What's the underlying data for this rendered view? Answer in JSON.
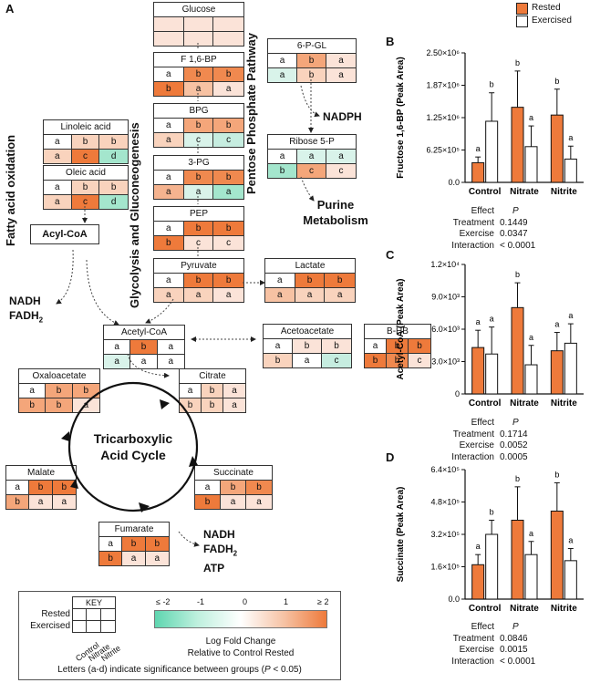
{
  "panels": {
    "a": "A",
    "b": "B",
    "c": "C",
    "d": "D"
  },
  "colors": {
    "accent": "#EE7A3B",
    "low": "#5FD6B0"
  },
  "boxes": [
    {
      "id": "glucose",
      "title": "Glucose",
      "rows": [
        [
          "",
          "",
          ""
        ],
        [
          "",
          "",
          ""
        ]
      ],
      "fills": [
        [
          "#fbe3d8",
          "#fbe3d8",
          "#fbe3d8"
        ],
        [
          "#fbe3d8",
          "#fbe3d8",
          "#fbe3d8"
        ]
      ]
    },
    {
      "id": "f16bp",
      "title": "F 1,6-BP",
      "rows": [
        [
          "a",
          "b",
          "b"
        ],
        [
          "b",
          "a",
          "a"
        ]
      ],
      "fills": [
        [
          "#ffffff",
          "#f0894f",
          "#f0894f"
        ],
        [
          "#ee7a3b",
          "#f7c2a3",
          "#fbe3d8"
        ]
      ]
    },
    {
      "id": "bpg",
      "title": "BPG",
      "rows": [
        [
          "a",
          "b",
          "b"
        ],
        [
          "a",
          "c",
          "c"
        ]
      ],
      "fills": [
        [
          "#ffffff",
          "#f4a67a",
          "#f4a67a"
        ],
        [
          "#f9d3bd",
          "#d9f3ea",
          "#c6ede0"
        ]
      ]
    },
    {
      "id": "pg3",
      "title": "3-PG",
      "rows": [
        [
          "a",
          "b",
          "b"
        ],
        [
          "a",
          "a",
          "a"
        ]
      ],
      "fills": [
        [
          "#ffffff",
          "#f0894f",
          "#f0894f"
        ],
        [
          "#f5b38f",
          "#d9f3ea",
          "#a4e6cd"
        ]
      ]
    },
    {
      "id": "pep",
      "title": "PEP",
      "rows": [
        [
          "a",
          "b",
          "b"
        ],
        [
          "b",
          "c",
          "c"
        ]
      ],
      "fills": [
        [
          "#ffffff",
          "#ee7a3b",
          "#ee7a3b"
        ],
        [
          "#ee7a3b",
          "#fbe3d8",
          "#fbe3d8"
        ]
      ]
    },
    {
      "id": "pyruvate",
      "title": "Pyruvate",
      "rows": [
        [
          "a",
          "b",
          "b"
        ],
        [
          "a",
          "a",
          "a"
        ]
      ],
      "fills": [
        [
          "#ffffff",
          "#ee7a3b",
          "#ee7a3b"
        ],
        [
          "#f9d3bd",
          "#f9d3bd",
          "#fbe3d8"
        ]
      ]
    },
    {
      "id": "lactate",
      "title": "Lactate",
      "rows": [
        [
          "a",
          "b",
          "b"
        ],
        [
          "a",
          "a",
          "a"
        ]
      ],
      "fills": [
        [
          "#ffffff",
          "#ee7a3b",
          "#ee7a3b"
        ],
        [
          "#f7c2a3",
          "#f9d3bd",
          "#f9d3bd"
        ]
      ]
    },
    {
      "id": "pgl6",
      "title": "6-P-GL",
      "rows": [
        [
          "a",
          "b",
          "a"
        ],
        [
          "a",
          "b",
          "a"
        ]
      ],
      "fills": [
        [
          "#ffffff",
          "#f4a67a",
          "#fbe3d8"
        ],
        [
          "#d9f3ea",
          "#f9d3bd",
          "#fbe3d8"
        ]
      ]
    },
    {
      "id": "ribose",
      "title": "Ribose 5-P",
      "rows": [
        [
          "a",
          "a",
          "a"
        ],
        [
          "b",
          "c",
          "c"
        ]
      ],
      "fills": [
        [
          "#ffffff",
          "#d9f3ea",
          "#d9f3ea"
        ],
        [
          "#a4e6cd",
          "#f4a67a",
          "#fbe3d8"
        ]
      ]
    },
    {
      "id": "linoleic",
      "title": "Linoleic acid",
      "rows": [
        [
          "a",
          "b",
          "b"
        ],
        [
          "a",
          "c",
          "d"
        ]
      ],
      "fills": [
        [
          "#ffffff",
          "#f9d3bd",
          "#f9d3bd"
        ],
        [
          "#f9d3bd",
          "#ee7a3b",
          "#a4e6cd"
        ]
      ]
    },
    {
      "id": "oleic",
      "title": "Oleic acid",
      "rows": [
        [
          "a",
          "b",
          "b"
        ],
        [
          "a",
          "c",
          "d"
        ]
      ],
      "fills": [
        [
          "#ffffff",
          "#f9d3bd",
          "#f9d3bd"
        ],
        [
          "#f9d3bd",
          "#ee7a3b",
          "#a4e6cd"
        ]
      ]
    },
    {
      "id": "acetylcoa",
      "title": "Acetyl-CoA",
      "rows": [
        [
          "a",
          "b",
          "a"
        ],
        [
          "a",
          "a",
          "a"
        ]
      ],
      "fills": [
        [
          "#ffffff",
          "#ee7a3b",
          "#ffffff"
        ],
        [
          "#d9f3ea",
          "#ffffff",
          "#ffffff"
        ]
      ]
    },
    {
      "id": "acetoacetate",
      "title": "Acetoacetate",
      "rows": [
        [
          "a",
          "b",
          "b"
        ],
        [
          "b",
          "a",
          "c"
        ]
      ],
      "fills": [
        [
          "#ffffff",
          "#fbe3d8",
          "#fbe3d8"
        ],
        [
          "#f9d3bd",
          "#ffffff",
          "#c6ede0"
        ]
      ]
    },
    {
      "id": "bhb",
      "title": "B-HB",
      "rows": [
        [
          "a",
          "b",
          "b"
        ],
        [
          "b",
          "b",
          "c"
        ]
      ],
      "fills": [
        [
          "#ffffff",
          "#ee7a3b",
          "#ee7a3b"
        ],
        [
          "#ee7a3b",
          "#f0894f",
          "#fbe3d8"
        ]
      ]
    },
    {
      "id": "oxaloacetate",
      "title": "Oxaloacetate",
      "rows": [
        [
          "a",
          "b",
          "b"
        ],
        [
          "b",
          "b",
          "a"
        ]
      ],
      "fills": [
        [
          "#ffffff",
          "#f4a67a",
          "#f4a67a"
        ],
        [
          "#f4a67a",
          "#f4a67a",
          "#fbe3d8"
        ]
      ]
    },
    {
      "id": "citrate",
      "title": "Citrate",
      "rows": [
        [
          "a",
          "b",
          "a"
        ],
        [
          "b",
          "b",
          "a"
        ]
      ],
      "fills": [
        [
          "#ffffff",
          "#f9d3bd",
          "#fbe3d8"
        ],
        [
          "#f9d3bd",
          "#f9d3bd",
          "#fbe3d8"
        ]
      ]
    },
    {
      "id": "malate",
      "title": "Malate",
      "rows": [
        [
          "a",
          "b",
          "b"
        ],
        [
          "b",
          "a",
          "a"
        ]
      ],
      "fills": [
        [
          "#ffffff",
          "#ee7a3b",
          "#ee7a3b"
        ],
        [
          "#f4a67a",
          "#fbe3d8",
          "#fbe3d8"
        ]
      ]
    },
    {
      "id": "succinate",
      "title": "Succinate",
      "rows": [
        [
          "a",
          "b",
          "b"
        ],
        [
          "b",
          "a",
          "a"
        ]
      ],
      "fills": [
        [
          "#ffffff",
          "#f4a67a",
          "#f0894f"
        ],
        [
          "#ee7a3b",
          "#fbe3d8",
          "#fbe3d8"
        ]
      ]
    },
    {
      "id": "fumarate",
      "title": "Fumarate",
      "rows": [
        [
          "a",
          "b",
          "b"
        ],
        [
          "b",
          "a",
          "a"
        ]
      ],
      "fills": [
        [
          "#ffffff",
          "#ee7a3b",
          "#ee7a3b"
        ],
        [
          "#ee7a3b",
          "#fbe3d8",
          "#fbe3d8"
        ]
      ]
    }
  ],
  "labels": {
    "fatty_acid": "Fatty acid oxidation",
    "glycolysis": "Glycolysis and Gluconeogenesis",
    "ppp": "Pentose Phosphate Pathway",
    "nadph": "NADPH",
    "purine": "Purine Metabolism",
    "acyl_coa": "Acyl-CoA",
    "nadh1": "NADH",
    "fadh1": "FADH",
    "tca": "Tricarboxylic Acid Cycle",
    "nadh2": "NADH",
    "fadh2": "FADH",
    "atp": "ATP",
    "sub2": "2"
  },
  "key": {
    "title": "KEY",
    "rows": [
      "Rested",
      "Exercised"
    ],
    "cols": [
      "Control",
      "Nitrate",
      "Nitrite"
    ],
    "scale_ticks": [
      "≤ -2",
      "-1",
      "0",
      "1",
      "≥ 2"
    ],
    "caption1": "Log Fold Change",
    "caption2": "Relative to Control Rested",
    "footnote_pre": "Letters (a-d) indicate significance between groups (",
    "footnote_p": "P",
    "footnote_post": " < 0.05)"
  },
  "legend": {
    "rested": "Rested",
    "exercised": "Exercised"
  },
  "chart_data": [
    {
      "panel": "B",
      "type": "bar",
      "ylabel": "Fructose 1,6-BP (Peak Area)",
      "ylim": [
        0,
        2500000
      ],
      "yticks": [
        "0.0",
        "6.25×10⁵",
        "1.25×10⁶",
        "1.87×10⁶",
        "2.50×10⁶"
      ],
      "categories": [
        "Control",
        "Nitrate",
        "Nitrite"
      ],
      "series": [
        {
          "name": "Rested",
          "values": [
            380000,
            1450000,
            1300000
          ],
          "err": [
            110000,
            700000,
            500000
          ],
          "letters": [
            "a",
            "b",
            "b"
          ]
        },
        {
          "name": "Exercised",
          "values": [
            1180000,
            690000,
            450000
          ],
          "err": [
            550000,
            400000,
            250000
          ],
          "letters": [
            "b",
            "a",
            "a"
          ]
        }
      ],
      "stats": {
        "header": [
          "Effect",
          "P"
        ],
        "rows": [
          [
            "Treatment",
            "0.1449"
          ],
          [
            "Exercise",
            "0.0347"
          ],
          [
            "Interaction",
            "< 0.0001"
          ]
        ]
      }
    },
    {
      "panel": "C",
      "type": "bar",
      "ylabel": "Acetyl-CoA (Peak Area)",
      "ylim": [
        0,
        12000
      ],
      "yticks": [
        "0",
        "3.0×10³",
        "6.0×10³",
        "9.0×10³",
        "1.2×10⁴"
      ],
      "categories": [
        "Control",
        "Nitrate",
        "Nitrite"
      ],
      "series": [
        {
          "name": "Rested",
          "values": [
            4300,
            8000,
            4000
          ],
          "err": [
            1600,
            2300,
            1700
          ],
          "letters": [
            "a",
            "b",
            "a"
          ]
        },
        {
          "name": "Exercised",
          "values": [
            3700,
            2700,
            4700
          ],
          "err": [
            2500,
            1800,
            1800
          ],
          "letters": [
            "a",
            "a",
            "a"
          ]
        }
      ],
      "stats": {
        "header": [
          "Effect",
          "P"
        ],
        "rows": [
          [
            "Treatment",
            "0.1714"
          ],
          [
            "Exercise",
            "0.0052"
          ],
          [
            "Interaction",
            "0.0005"
          ]
        ]
      }
    },
    {
      "panel": "D",
      "type": "bar",
      "ylabel": "Succinate (Peak Area)",
      "ylim": [
        0,
        640000
      ],
      "yticks": [
        "0.0",
        "1.6×10⁵",
        "3.2×10⁵",
        "4.8×10⁵",
        "6.4×10⁵"
      ],
      "categories": [
        "Control",
        "Nitrate",
        "Nitrite"
      ],
      "series": [
        {
          "name": "Rested",
          "values": [
            170000,
            390000,
            435000
          ],
          "err": [
            50000,
            165000,
            140000
          ],
          "letters": [
            "a",
            "b",
            "b"
          ]
        },
        {
          "name": "Exercised",
          "values": [
            320000,
            220000,
            190000
          ],
          "err": [
            70000,
            65000,
            60000
          ],
          "letters": [
            "b",
            "a",
            "a"
          ]
        }
      ],
      "stats": {
        "header": [
          "Effect",
          "P"
        ],
        "rows": [
          [
            "Treatment",
            "0.0846"
          ],
          [
            "Exercise",
            "0.0015"
          ],
          [
            "Interaction",
            "< 0.0001"
          ]
        ]
      }
    }
  ]
}
